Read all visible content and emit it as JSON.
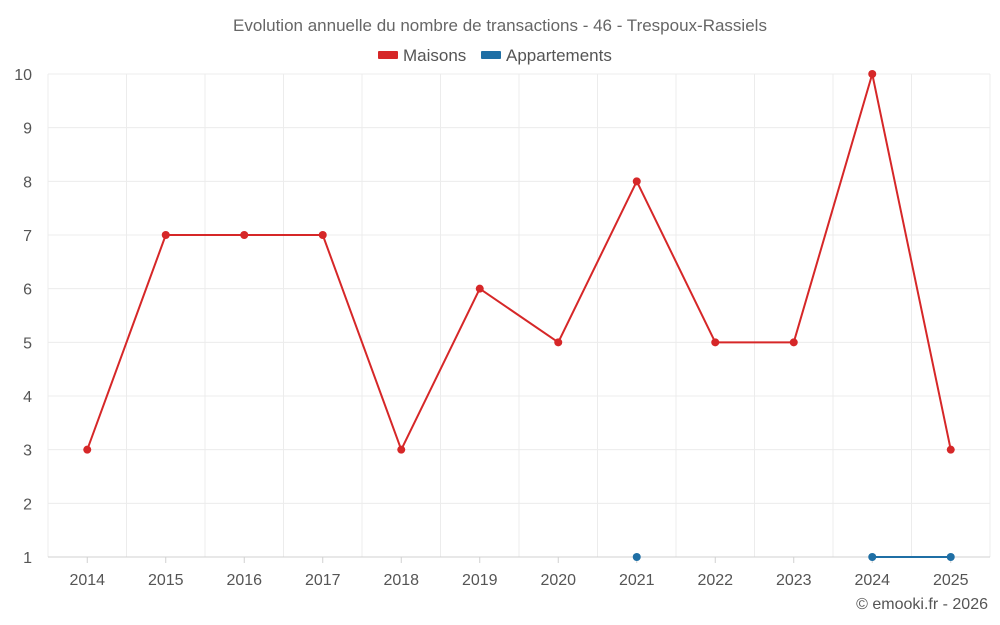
{
  "chart_data": {
    "type": "line",
    "title": "Evolution annuelle du nombre de transactions - 46 - Trespoux-Rassiels",
    "categories": [
      "2014",
      "2015",
      "2016",
      "2017",
      "2018",
      "2019",
      "2020",
      "2021",
      "2022",
      "2023",
      "2024",
      "2025"
    ],
    "series": [
      {
        "name": "Maisons",
        "color": "#d62728",
        "values": [
          3,
          7,
          7,
          7,
          3,
          6,
          5,
          8,
          5,
          5,
          10,
          3
        ]
      },
      {
        "name": "Appartements",
        "color": "#1f6fa5",
        "values": [
          null,
          null,
          null,
          null,
          null,
          null,
          null,
          1,
          null,
          null,
          1,
          1
        ]
      }
    ],
    "ylim": [
      1,
      10
    ],
    "yticks": [
      1,
      2,
      3,
      4,
      5,
      6,
      7,
      8,
      9,
      10
    ],
    "grid": true,
    "legend": "top-center",
    "xlabel": "",
    "ylabel": ""
  },
  "credit": "© emooki.fr - 2026"
}
